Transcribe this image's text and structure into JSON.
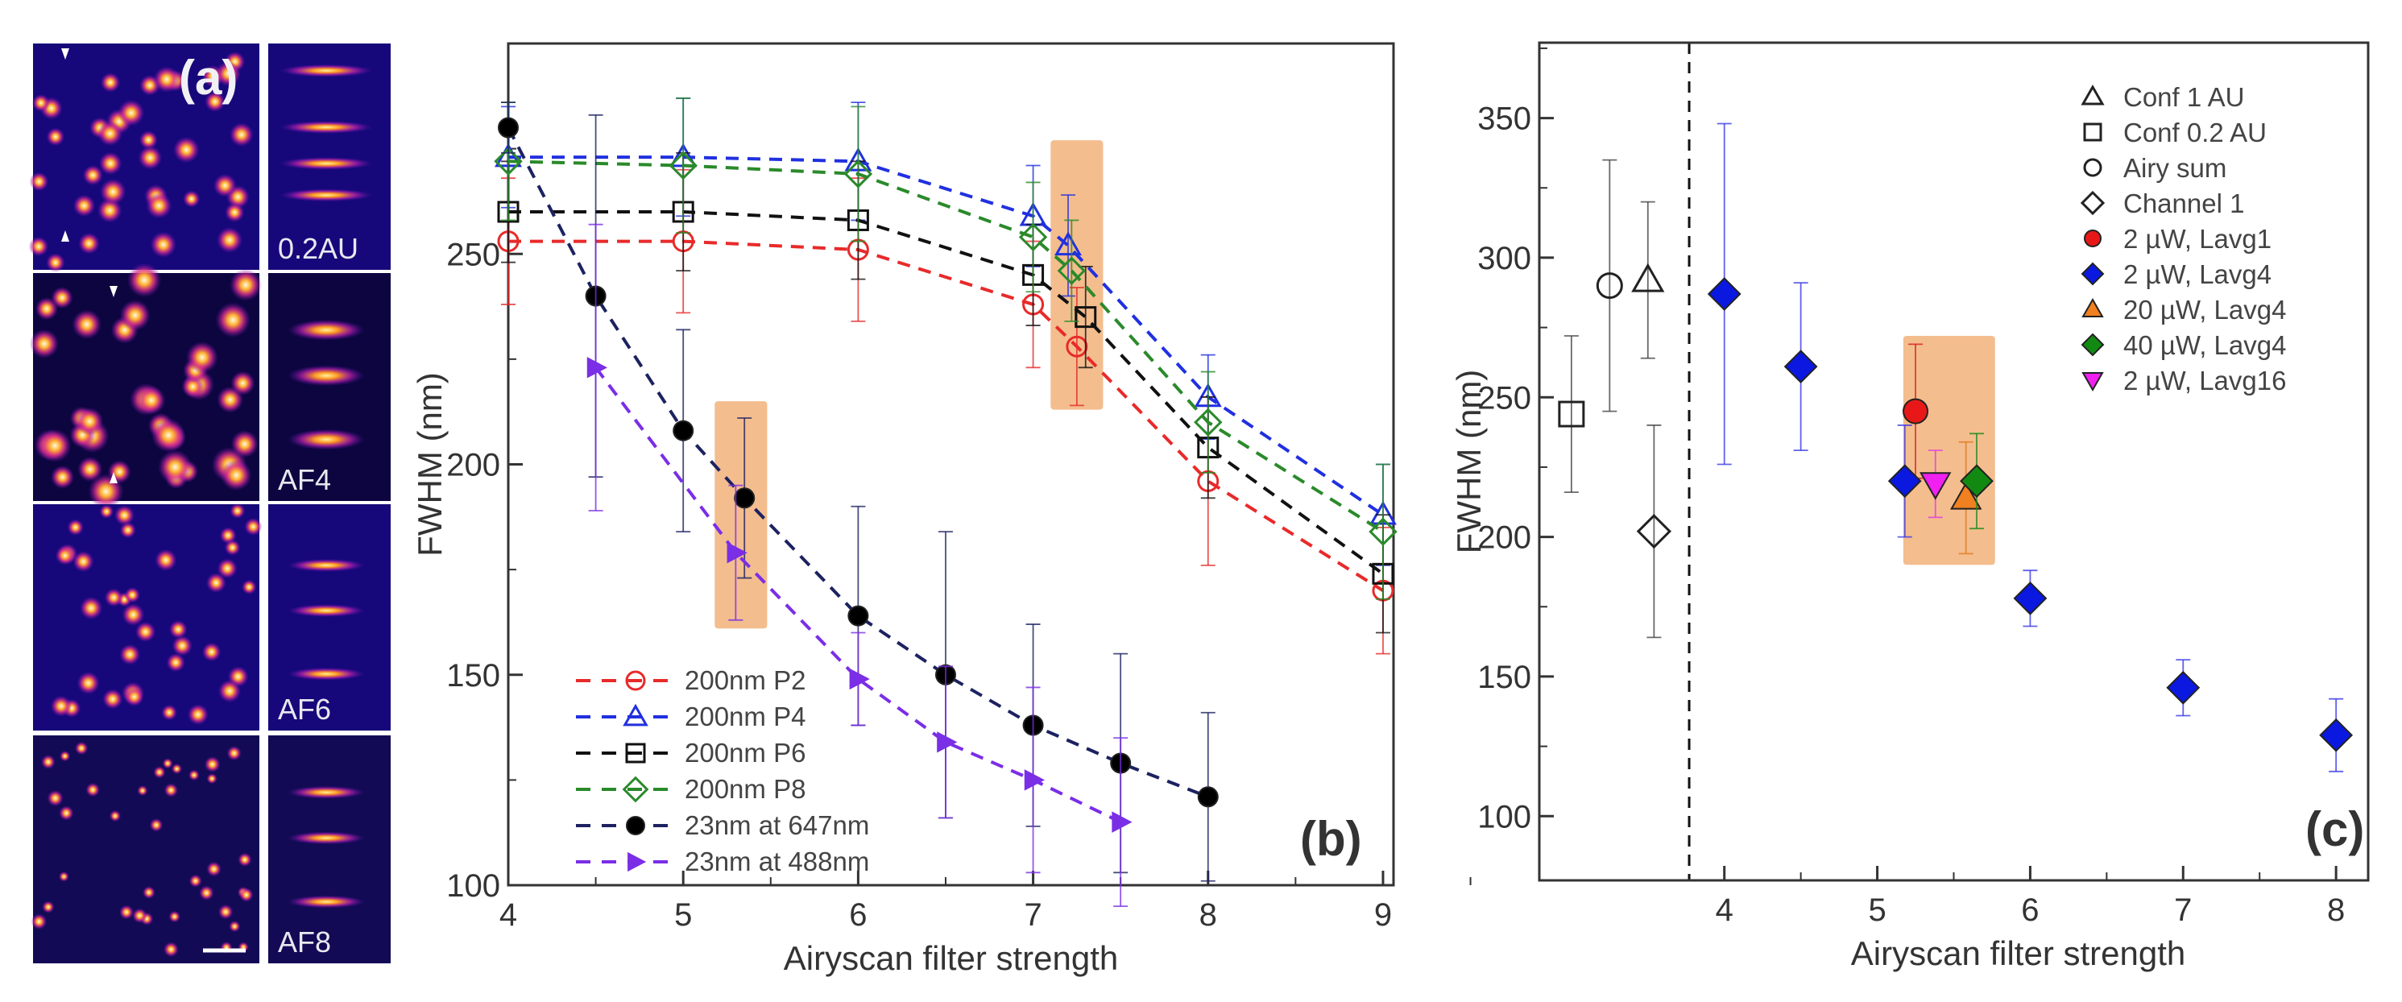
{
  "panel_a": {
    "tag": "(a)",
    "row_labels": [
      "0.2AU",
      "AF4",
      "AF6",
      "AF8"
    ],
    "background_color": "#16087a",
    "spot_color": "#ffb030"
  },
  "chart_data": [
    {
      "type": "line",
      "panel_tag": "(b)",
      "xlabel": "Airyscan filter strength",
      "ylabel": "FWHM (nm)",
      "xlim": [
        4,
        9.06
      ],
      "ylim": [
        100,
        300
      ],
      "xticks": [
        4,
        5,
        6,
        7,
        8,
        9
      ],
      "yticks": [
        100,
        150,
        200,
        250
      ],
      "legend_position": "bottom-left",
      "highlights": [
        {
          "x": [
            5.18,
            5.48
          ],
          "y": [
            161,
            215
          ]
        },
        {
          "x": [
            7.1,
            7.4
          ],
          "y": [
            213,
            277
          ]
        }
      ],
      "series": [
        {
          "name": "200nm P2",
          "color": "#e82a2a",
          "marker": "circle-open",
          "x": [
            4,
            5,
            6,
            7,
            7.25,
            8,
            9
          ],
          "y": [
            253,
            253,
            251,
            238,
            228,
            196,
            170
          ],
          "err": [
            15,
            17,
            17,
            15,
            14,
            20,
            15
          ]
        },
        {
          "name": "200nm P4",
          "color": "#2030e0",
          "marker": "triangle-open",
          "x": [
            4,
            5,
            6,
            7,
            7.2,
            8,
            9
          ],
          "y": [
            273,
            273,
            272,
            259,
            252,
            216,
            188
          ],
          "err": [
            12,
            14,
            14,
            12,
            12,
            10,
            12
          ]
        },
        {
          "name": "200nm P6",
          "color": "#111111",
          "marker": "square-open",
          "x": [
            4,
            5,
            6,
            7,
            7.3,
            8,
            9
          ],
          "y": [
            260,
            260,
            258,
            245,
            235,
            204,
            174
          ],
          "err": [
            12,
            14,
            14,
            12,
            12,
            12,
            14
          ]
        },
        {
          "name": "200nm P8",
          "color": "#2a8a2a",
          "marker": "diamond-open",
          "x": [
            4,
            5,
            6,
            7,
            7.22,
            8,
            9
          ],
          "y": [
            272,
            271,
            269,
            254,
            246,
            210,
            184
          ],
          "err": [
            14,
            16,
            16,
            13,
            12,
            12,
            16
          ]
        },
        {
          "name": "23nm at 647nm",
          "color": "#1c2260",
          "marker": "circle-filled",
          "marker_color": "#000000",
          "x": [
            4,
            4.5,
            5,
            5.35,
            6,
            6.5,
            7,
            7.5,
            8
          ],
          "y": [
            280,
            240,
            208,
            192,
            164,
            150,
            138,
            129,
            121
          ],
          "err": [
            6,
            43,
            24,
            19,
            26,
            34,
            24,
            26,
            20
          ]
        },
        {
          "name": "23nm at 488nm",
          "color": "#7a2ee6",
          "marker": "triangle-right-filled",
          "x": [
            4.5,
            5.3,
            6,
            6.5,
            7,
            7.5
          ],
          "y": [
            223,
            179,
            149,
            134,
            125,
            115
          ],
          "err": [
            34,
            16,
            11,
            18,
            22,
            20
          ]
        }
      ]
    },
    {
      "type": "scatter",
      "panel_tag": "(c)",
      "xlabel": "Airyscan filter strength",
      "ylabel": "FWHM (nm)",
      "xlim": [
        2.79,
        8.21
      ],
      "ylim": [
        77,
        377
      ],
      "xticks": [
        4,
        5,
        6,
        7,
        8
      ],
      "yticks": [
        100,
        150,
        200,
        250,
        300,
        350
      ],
      "divider_x": 3.77,
      "legend_position": "top-right",
      "highlights": [
        {
          "x": [
            5.17,
            5.77
          ],
          "y": [
            190,
            272
          ]
        }
      ],
      "series": [
        {
          "name": "Conf 1 AU",
          "color": "#444444",
          "marker": "triangle-open",
          "marker_color": "#222222",
          "x": [
            3.5
          ],
          "y": [
            292
          ],
          "err": [
            28
          ]
        },
        {
          "name": "Conf 0.2 AU",
          "color": "#444444",
          "marker": "square-open",
          "marker_color": "#222222",
          "x": [
            3.0
          ],
          "y": [
            244
          ],
          "err": [
            28
          ]
        },
        {
          "name": "Airy sum",
          "color": "#444444",
          "marker": "circle-open",
          "marker_color": "#222222",
          "x": [
            3.25
          ],
          "y": [
            290
          ],
          "err": [
            45
          ]
        },
        {
          "name": "Channel 1",
          "color": "#444444",
          "marker": "diamond-open",
          "marker_color": "#222222",
          "x": [
            3.54
          ],
          "y": [
            202
          ],
          "err": [
            38
          ]
        },
        {
          "name": "2 µW, Lavg1",
          "color": "#d02020",
          "marker": "circle-filled",
          "marker_color": "#e81818",
          "x": [
            5.25
          ],
          "y": [
            245
          ],
          "err": [
            24
          ]
        },
        {
          "name": "2 µW, Lavg4",
          "color": "#3a3ae8",
          "marker": "diamond-filled",
          "marker_color": "#0a18e0",
          "x": [
            4,
            4.5,
            5.18,
            6,
            7,
            8
          ],
          "y": [
            287,
            261,
            220,
            178,
            146,
            129
          ],
          "err": [
            61,
            30,
            20,
            10,
            10,
            13
          ]
        },
        {
          "name": "20 µW, Lavg4",
          "color": "#e07a20",
          "marker": "triangle-filled",
          "marker_color": "#f08020",
          "x": [
            5.58
          ],
          "y": [
            214
          ],
          "err": [
            20
          ]
        },
        {
          "name": "40 µW, Lavg4",
          "color": "#1a8a1a",
          "marker": "diamond-filled",
          "marker_color": "#128a12",
          "x": [
            5.65
          ],
          "y": [
            220
          ],
          "err": [
            17
          ]
        },
        {
          "name": "2 µW, Lavg16",
          "color": "#e040e0",
          "marker": "triangle-down-filled",
          "marker_color": "#f020f0",
          "x": [
            5.38
          ],
          "y": [
            219
          ],
          "err": [
            12
          ]
        }
      ]
    }
  ]
}
